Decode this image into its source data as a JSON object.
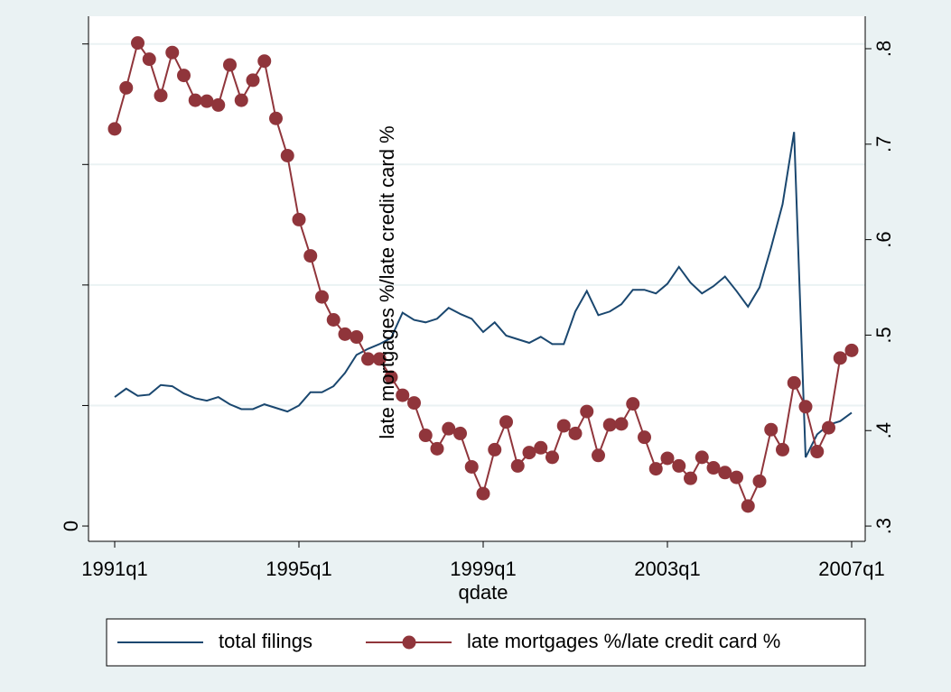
{
  "chart_data": {
    "type": "line",
    "categories": [
      "1991q1",
      null,
      null,
      null,
      null,
      null,
      null,
      null,
      null,
      null,
      null,
      null,
      null,
      null,
      null,
      null,
      "1995q1",
      null,
      null,
      null,
      null,
      null,
      null,
      null,
      null,
      null,
      null,
      null,
      null,
      null,
      null,
      null,
      "1999q1",
      null,
      null,
      null,
      null,
      null,
      null,
      null,
      null,
      null,
      null,
      null,
      null,
      null,
      null,
      null,
      "2003q1",
      null,
      null,
      null,
      null,
      null,
      null,
      null,
      null,
      null,
      null,
      null,
      null,
      null,
      null,
      null,
      "2007q1"
    ],
    "x_label": "qdate",
    "y2_label": "late mortgages %/late credit card %",
    "ylim": [
      -0.127,
      4.23
    ],
    "yticks": [
      0,
      {
        "value": 1,
        "label": null
      },
      {
        "value": 2,
        "label": null
      },
      {
        "value": 3,
        "label": null
      },
      {
        "value": 4,
        "label": null
      }
    ],
    "y2lim": [
      0.284,
      0.834
    ],
    "y2ticks": [
      {
        "value": 0.3,
        "label": ".3"
      },
      {
        "value": 0.4,
        "label": ".4"
      },
      {
        "value": 0.5,
        "label": ".5"
      },
      {
        "value": 0.6,
        "label": ".6"
      },
      {
        "value": 0.7,
        "label": ".7"
      },
      {
        "value": 0.8,
        "label": ".8"
      }
    ],
    "grid": true,
    "legend": "bottom",
    "series": [
      {
        "name": "total filings",
        "color": "#1a476f",
        "markers": false,
        "values": [
          1.07,
          1.14,
          1.08,
          1.09,
          1.17,
          1.16,
          1.1,
          1.06,
          1.04,
          1.07,
          1.01,
          0.97,
          0.97,
          1.01,
          0.98,
          0.95,
          1.0,
          1.11,
          1.11,
          1.16,
          1.27,
          1.42,
          1.47,
          1.51,
          1.56,
          1.77,
          1.71,
          1.69,
          1.72,
          1.81,
          1.76,
          1.72,
          1.61,
          1.69,
          1.58,
          1.55,
          1.52,
          1.57,
          1.51,
          1.51,
          1.78,
          1.95,
          1.75,
          1.78,
          1.84,
          1.96,
          1.96,
          1.93,
          2.01,
          2.15,
          2.02,
          1.93,
          1.99,
          2.07,
          1.95,
          1.82,
          1.98,
          2.31,
          2.67,
          3.27,
          0.57,
          0.76,
          0.84,
          0.87,
          0.94
        ]
      },
      {
        "name": "late mortgages %/late credit card %",
        "color": "#90353b",
        "markers": true,
        "axis": "y2",
        "values": [
          0.716,
          0.759,
          0.806,
          0.789,
          0.751,
          0.796,
          0.772,
          0.746,
          0.745,
          0.741,
          0.783,
          0.746,
          0.767,
          0.787,
          0.727,
          0.688,
          0.621,
          0.583,
          0.54,
          0.516,
          0.501,
          0.498,
          0.475,
          0.475,
          0.456,
          0.437,
          0.429,
          0.395,
          0.381,
          0.402,
          0.397,
          0.362,
          0.334,
          0.38,
          0.409,
          0.363,
          0.377,
          0.382,
          0.372,
          0.405,
          0.397,
          0.42,
          0.374,
          0.406,
          0.407,
          0.428,
          0.393,
          0.36,
          0.371,
          0.363,
          0.35,
          0.372,
          0.361,
          0.356,
          0.351,
          0.321,
          0.347,
          0.401,
          0.38,
          0.45,
          0.425,
          0.378,
          0.403,
          0.476,
          0.484
        ]
      }
    ]
  }
}
